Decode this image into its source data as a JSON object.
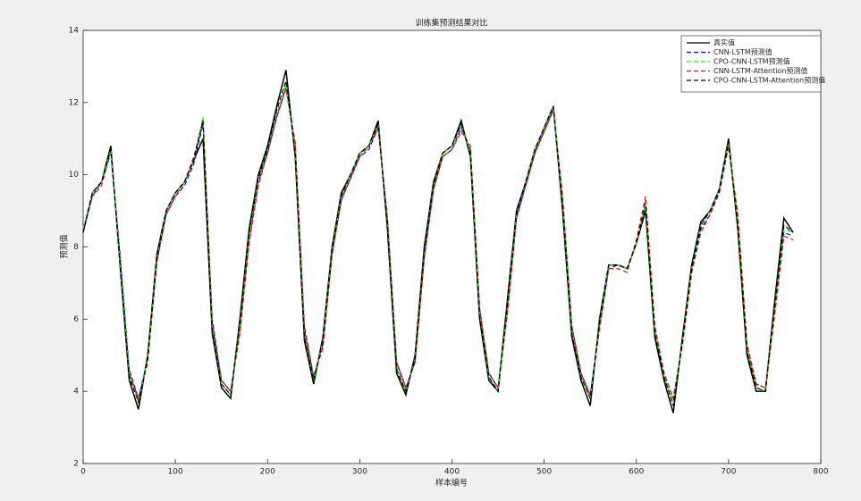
{
  "chart_data": {
    "type": "line",
    "title": "训练集预测结果对比",
    "x_label": "样本编号",
    "y_label": "预测值",
    "xlim": [
      0,
      800
    ],
    "xticks": [
      0,
      100,
      200,
      300,
      400,
      500,
      600,
      700,
      800
    ],
    "ylim": [
      2,
      14
    ],
    "yticks": [
      2,
      4,
      6,
      8,
      10,
      12,
      14
    ],
    "legend": "top-right",
    "x": [
      0,
      10,
      20,
      30,
      40,
      50,
      60,
      70,
      80,
      90,
      100,
      110,
      120,
      130,
      140,
      150,
      160,
      170,
      180,
      190,
      200,
      210,
      220,
      230,
      240,
      250,
      260,
      270,
      280,
      290,
      300,
      310,
      320,
      330,
      340,
      350,
      360,
      370,
      380,
      390,
      400,
      410,
      420,
      430,
      440,
      450,
      460,
      470,
      480,
      490,
      500,
      510,
      520,
      530,
      540,
      550,
      560,
      570,
      580,
      590,
      600,
      610,
      620,
      630,
      640,
      650,
      660,
      670,
      680,
      690,
      700,
      710,
      720,
      730,
      740,
      750,
      760,
      770
    ],
    "series": [
      {
        "name": "真实值",
        "color": "#000000",
        "dashed": false,
        "values": [
          8.4,
          9.5,
          9.8,
          10.8,
          7.5,
          4.3,
          3.5,
          5.0,
          7.8,
          9.0,
          9.5,
          9.8,
          10.4,
          11.0,
          5.6,
          4.1,
          3.8,
          6.0,
          8.5,
          10.0,
          10.8,
          11.9,
          12.9,
          10.5,
          5.4,
          4.2,
          5.5,
          8.0,
          9.5,
          10.0,
          10.6,
          10.8,
          11.5,
          8.5,
          4.5,
          3.9,
          5.0,
          8.0,
          9.8,
          10.6,
          10.8,
          11.5,
          10.5,
          6.0,
          4.3,
          4.0,
          6.5,
          9.0,
          9.8,
          10.7,
          11.3,
          11.9,
          9.0,
          5.5,
          4.3,
          3.6,
          6.0,
          7.5,
          7.5,
          7.4,
          8.1,
          9.0,
          5.5,
          4.3,
          3.4,
          5.5,
          7.5,
          8.7,
          9.0,
          9.6,
          11.0,
          8.5,
          5.0,
          4.0,
          4.0,
          6.5,
          8.8,
          8.4
        ]
      },
      {
        "name": "CNN-LSTM预测值",
        "color": "#0000ff",
        "dashed": true,
        "values": [
          8.5,
          9.4,
          9.8,
          10.6,
          7.8,
          4.6,
          3.8,
          4.9,
          7.6,
          8.9,
          9.4,
          9.7,
          10.3,
          11.4,
          6.0,
          4.3,
          4.0,
          5.7,
          8.2,
          9.8,
          10.6,
          11.6,
          12.4,
          10.8,
          5.8,
          4.4,
          5.3,
          7.8,
          9.3,
          9.9,
          10.5,
          10.7,
          11.3,
          8.8,
          4.8,
          4.1,
          4.8,
          7.7,
          9.6,
          10.5,
          10.7,
          11.3,
          10.7,
          6.3,
          4.5,
          4.1,
          6.2,
          8.8,
          9.7,
          10.6,
          11.2,
          11.8,
          9.3,
          5.8,
          4.5,
          3.9,
          5.8,
          7.4,
          7.5,
          7.4,
          8.1,
          9.3,
          5.8,
          4.5,
          3.8,
          5.3,
          7.3,
          8.5,
          8.9,
          9.5,
          10.8,
          8.8,
          5.3,
          4.2,
          4.1,
          6.2,
          8.4,
          8.3
        ]
      },
      {
        "name": "CPO-CNN-LSTM预测值",
        "color": "#00ff00",
        "dashed": true,
        "values": [
          8.5,
          9.5,
          9.8,
          10.7,
          7.6,
          4.5,
          3.7,
          4.9,
          7.7,
          9.0,
          9.5,
          9.8,
          10.4,
          11.6,
          5.8,
          4.2,
          3.9,
          5.8,
          8.3,
          9.9,
          10.7,
          11.7,
          12.5,
          10.7,
          5.6,
          4.3,
          5.4,
          7.9,
          9.4,
          10.0,
          10.6,
          10.8,
          11.4,
          8.7,
          4.7,
          4.0,
          4.9,
          7.8,
          9.7,
          10.6,
          10.8,
          11.4,
          10.6,
          6.2,
          4.4,
          4.0,
          6.3,
          8.9,
          9.8,
          10.7,
          11.3,
          11.9,
          9.2,
          5.7,
          4.4,
          3.8,
          5.9,
          7.5,
          7.5,
          7.4,
          8.1,
          9.2,
          5.7,
          4.4,
          3.7,
          5.4,
          7.4,
          8.6,
          9.0,
          9.6,
          10.9,
          8.7,
          5.2,
          4.1,
          4.0,
          6.3,
          8.5,
          8.4
        ]
      },
      {
        "name": "CNN-LSTM-Attention预测值",
        "color": "#ff0000",
        "dashed": true,
        "values": [
          8.4,
          9.4,
          9.7,
          10.7,
          7.7,
          4.5,
          3.8,
          4.8,
          7.6,
          8.9,
          9.4,
          9.8,
          10.5,
          11.5,
          5.9,
          4.3,
          4.0,
          5.6,
          8.1,
          9.7,
          10.6,
          11.6,
          12.4,
          10.9,
          5.7,
          4.4,
          5.2,
          7.8,
          9.3,
          9.9,
          10.5,
          10.8,
          11.3,
          8.8,
          4.8,
          4.1,
          4.8,
          7.7,
          9.6,
          10.5,
          10.7,
          11.2,
          10.8,
          6.3,
          4.5,
          4.1,
          6.1,
          8.8,
          9.7,
          10.6,
          11.2,
          11.8,
          9.4,
          5.8,
          4.5,
          3.9,
          5.7,
          7.4,
          7.4,
          7.3,
          8.2,
          9.4,
          5.8,
          4.5,
          3.8,
          5.3,
          7.3,
          8.4,
          8.9,
          9.6,
          10.8,
          8.9,
          5.3,
          4.2,
          4.1,
          6.1,
          8.3,
          8.2
        ]
      },
      {
        "name": "CPO-CNN-LSTM-Attention预测值",
        "color": "#000000",
        "dashed": true,
        "values": [
          8.4,
          9.5,
          9.8,
          10.7,
          7.6,
          4.4,
          3.7,
          4.9,
          7.7,
          9.0,
          9.5,
          9.8,
          10.4,
          11.5,
          5.7,
          4.2,
          3.9,
          5.9,
          8.4,
          9.9,
          10.7,
          11.8,
          12.6,
          10.6,
          5.5,
          4.3,
          5.4,
          7.9,
          9.4,
          10.0,
          10.6,
          10.8,
          11.4,
          8.6,
          4.6,
          4.0,
          4.9,
          7.9,
          9.7,
          10.6,
          10.8,
          11.4,
          10.6,
          6.1,
          4.4,
          4.0,
          6.4,
          8.9,
          9.8,
          10.7,
          11.3,
          11.9,
          9.1,
          5.6,
          4.4,
          3.8,
          5.9,
          7.5,
          7.5,
          7.4,
          8.1,
          9.1,
          5.6,
          4.4,
          3.6,
          5.4,
          7.4,
          8.6,
          9.0,
          9.6,
          10.9,
          8.6,
          5.1,
          4.1,
          4.0,
          6.4,
          8.6,
          8.4
        ]
      }
    ]
  }
}
